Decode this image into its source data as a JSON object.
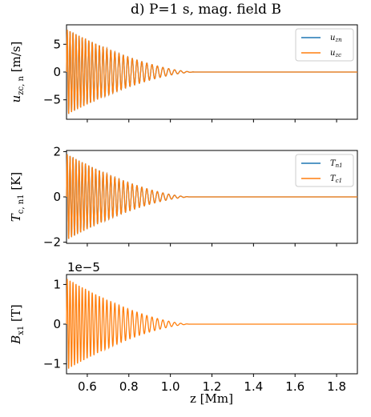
{
  "chart_data": [
    {
      "type": "line",
      "title": "d) P=1 s, mag. field B",
      "ylabel": "u_zc,n [m/s]",
      "xlabel": "",
      "xlim": [
        0.5,
        1.9
      ],
      "ylim": [
        -8.5,
        8.5
      ],
      "yticks": [
        "5",
        "0",
        "−5"
      ],
      "ytick_values": [
        5,
        0,
        -5
      ],
      "xticks": [
        "0.6",
        "0.8",
        "1.0",
        "1.2",
        "1.4",
        "1.6",
        "1.8"
      ],
      "xtick_values": [
        0.6,
        0.8,
        1.0,
        1.2,
        1.4,
        1.6,
        1.8
      ],
      "xticks_visible": false,
      "offset_text": "",
      "legend_position": "top-right",
      "series": [
        {
          "name": "u_zn",
          "color": "#1f77b4",
          "amplitude": 7.7,
          "decay_end": 1.12,
          "wavelength": 0.0135
        },
        {
          "name": "u_zc",
          "color": "#ff7f0e",
          "amplitude": 7.7,
          "decay_end": 1.12,
          "wavelength": 0.0135
        }
      ]
    },
    {
      "type": "line",
      "title": "",
      "ylabel": "T_c,n1 [K]",
      "xlabel": "",
      "xlim": [
        0.5,
        1.9
      ],
      "ylim": [
        -2.05,
        2.05
      ],
      "yticks": [
        "2",
        "0",
        "−2"
      ],
      "ytick_values": [
        2,
        0,
        -2
      ],
      "xticks": [
        "0.6",
        "0.8",
        "1.0",
        "1.2",
        "1.4",
        "1.6",
        "1.8"
      ],
      "xtick_values": [
        0.6,
        0.8,
        1.0,
        1.2,
        1.4,
        1.6,
        1.8
      ],
      "xticks_visible": false,
      "offset_text": "",
      "legend_position": "top-right",
      "series": [
        {
          "name": "T_n1",
          "color": "#1f77b4",
          "amplitude": 1.9,
          "decay_end": 1.1,
          "wavelength": 0.0135
        },
        {
          "name": "T_c1",
          "color": "#ff7f0e",
          "amplitude": 1.9,
          "decay_end": 1.1,
          "wavelength": 0.0135
        }
      ]
    },
    {
      "type": "line",
      "title": "",
      "ylabel": "B_x1 [T]",
      "xlabel": "z [Mm]",
      "xlim": [
        0.5,
        1.9
      ],
      "ylim": [
        -1.25,
        1.25
      ],
      "yticks": [
        "1",
        "0",
        "−1"
      ],
      "ytick_values": [
        1,
        0,
        -1
      ],
      "xticks": [
        "0.6",
        "0.8",
        "1.0",
        "1.2",
        "1.4",
        "1.6",
        "1.8"
      ],
      "xtick_values": [
        0.6,
        0.8,
        1.0,
        1.2,
        1.4,
        1.6,
        1.8
      ],
      "xticks_visible": true,
      "offset_text": "1e−5",
      "legend_position": "none",
      "series": [
        {
          "name": "B_x1",
          "color": "#ff7f0e",
          "amplitude": 1.15,
          "decay_end": 1.1,
          "wavelength": 0.0135
        }
      ]
    }
  ]
}
